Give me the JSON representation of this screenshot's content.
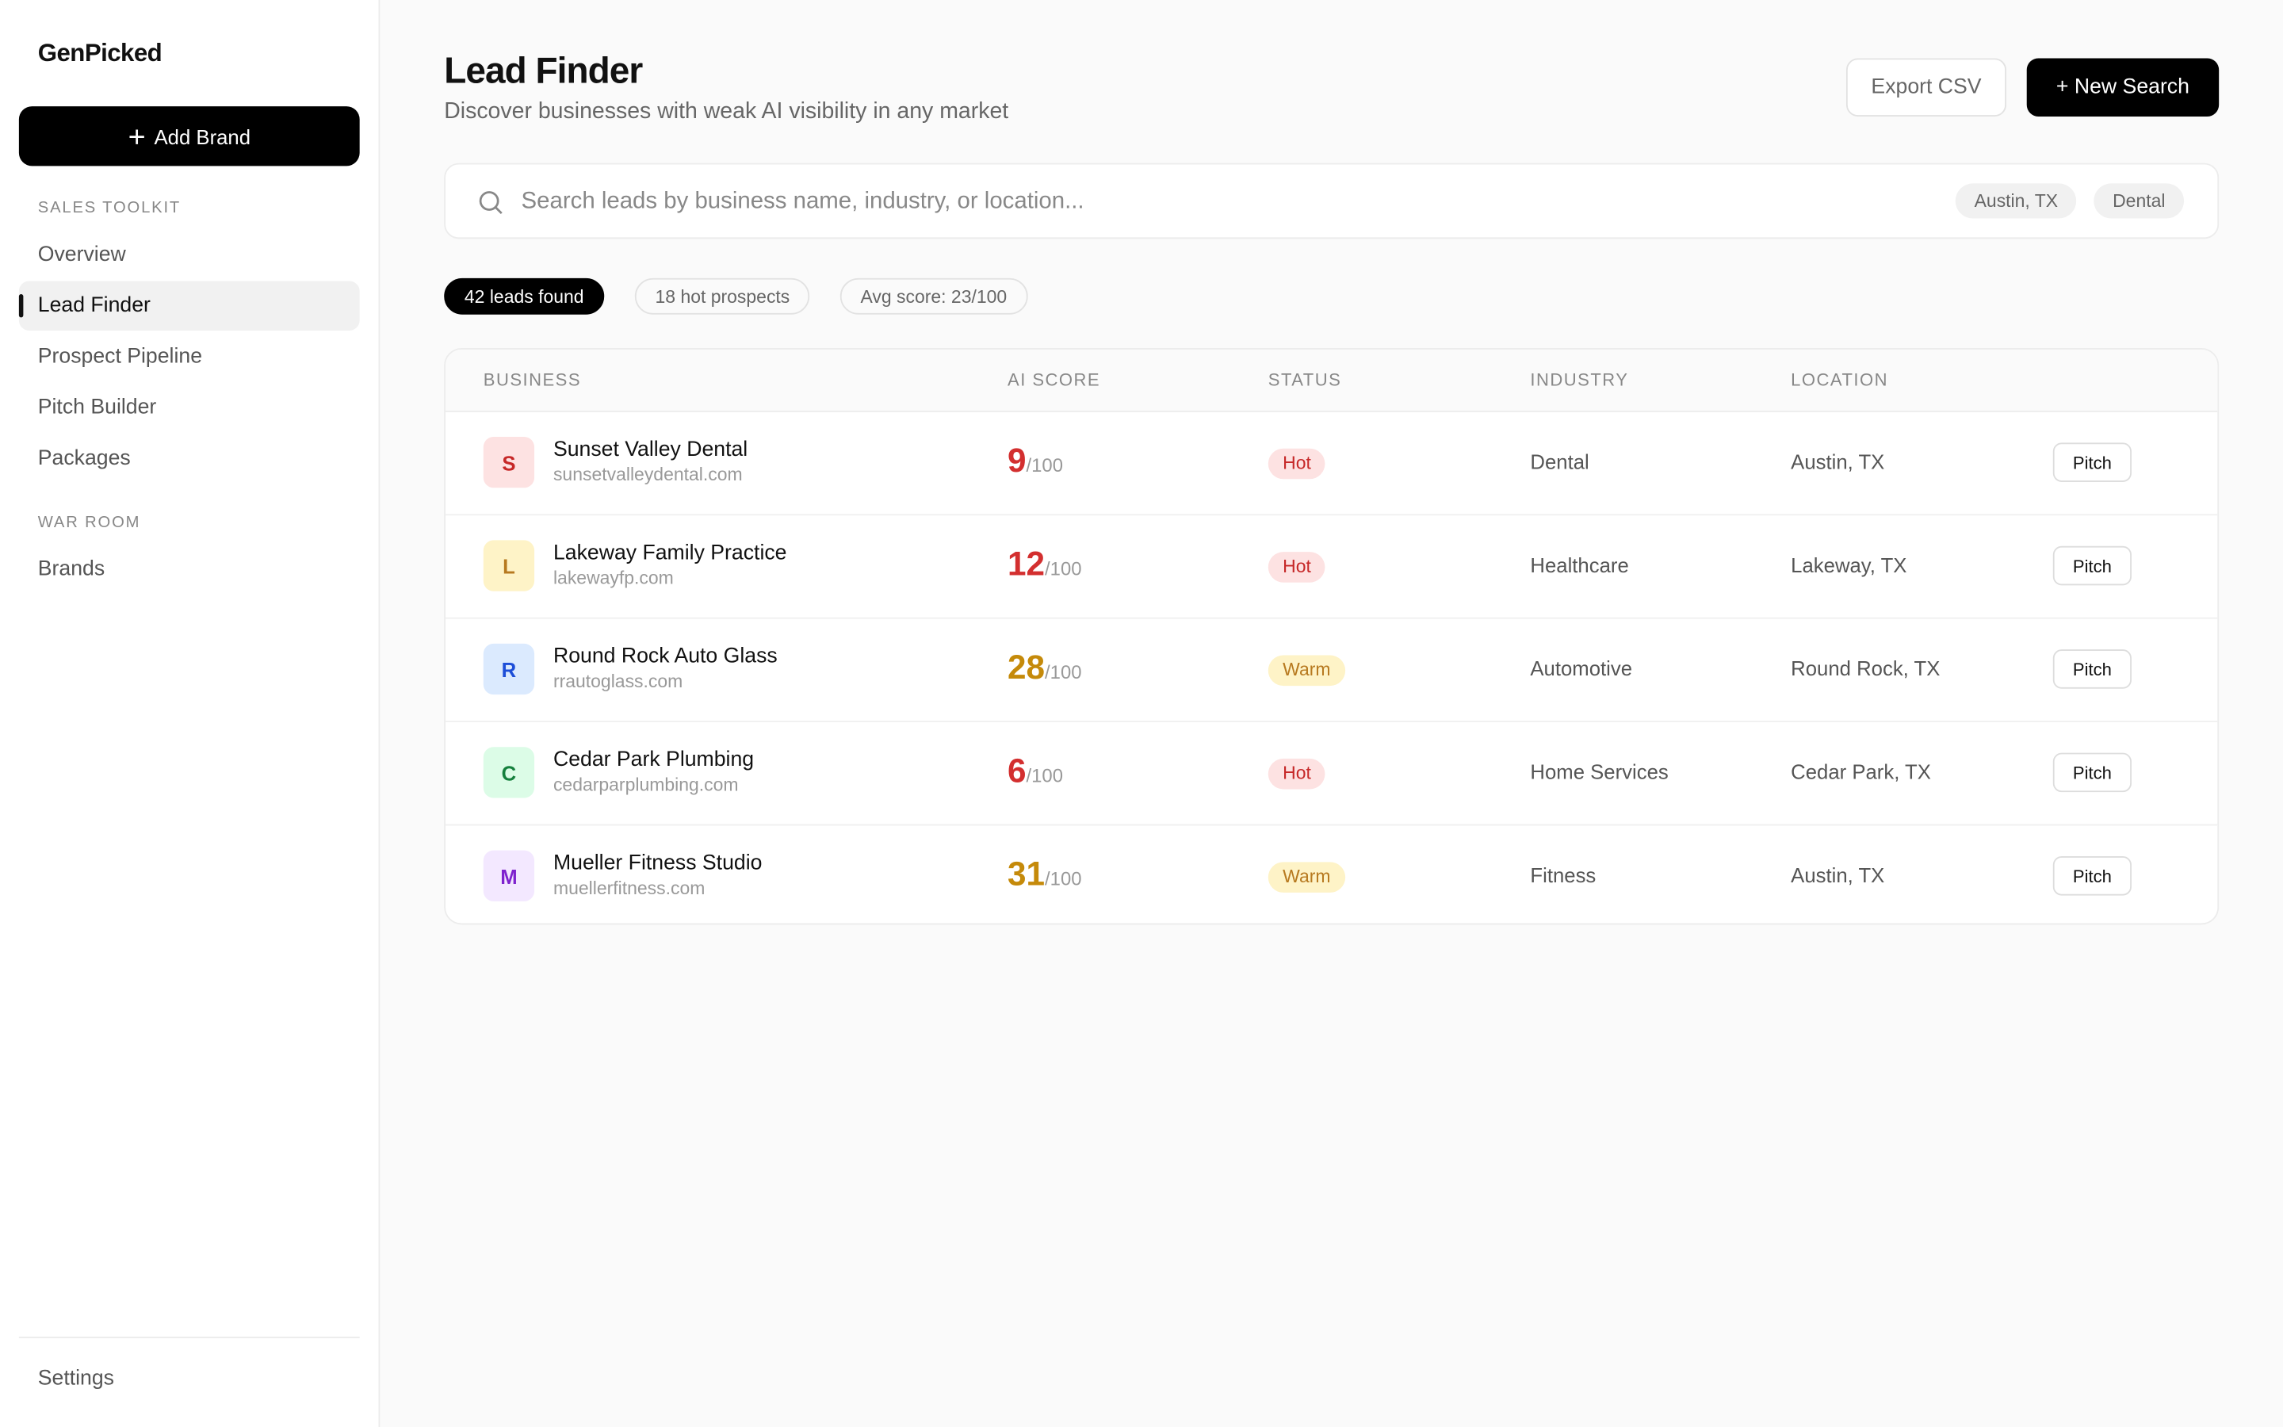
{
  "sidebar": {
    "brand": "GenPicked",
    "add_brand": "Add Brand",
    "sections": [
      {
        "title": "SALES TOOLKIT",
        "items": [
          "Overview",
          "Lead Finder",
          "Prospect Pipeline",
          "Pitch Builder",
          "Packages"
        ]
      },
      {
        "title": "WAR ROOM",
        "items": [
          "Brands"
        ]
      }
    ],
    "active": "Lead Finder",
    "settings": "Settings"
  },
  "header": {
    "title": "Lead Finder",
    "subtitle": "Discover businesses with weak AI visibility in any market",
    "export": "Export CSV",
    "new_search": "+ New Search"
  },
  "search": {
    "placeholder": "Search leads by business name, industry, or location...",
    "chips": [
      "Austin, TX",
      "Dental"
    ]
  },
  "stats": [
    "42 leads found",
    "18 hot prospects",
    "Avg score: 23/100"
  ],
  "table": {
    "columns": [
      "BUSINESS",
      "AI SCORE",
      "STATUS",
      "INDUSTRY",
      "LOCATION"
    ],
    "rows": [
      {
        "initial": "S",
        "name": "Sunset Valley Dental",
        "domain": "sunsetvalleydental.com",
        "score": 9,
        "score_suffix": "/100",
        "status": "Hot",
        "industry": "Dental",
        "location": "Austin, TX",
        "action": "Pitch"
      },
      {
        "initial": "L",
        "name": "Lakeway Family Practice",
        "domain": "lakewayfp.com",
        "score": 12,
        "score_suffix": "/100",
        "status": "Hot",
        "industry": "Healthcare",
        "location": "Lakeway, TX",
        "action": "Pitch"
      },
      {
        "initial": "R",
        "name": "Round Rock Auto Glass",
        "domain": "rrautoglass.com",
        "score": 28,
        "score_suffix": "/100",
        "status": "Warm",
        "industry": "Automotive",
        "location": "Round Rock, TX",
        "action": "Pitch"
      },
      {
        "initial": "C",
        "name": "Cedar Park Plumbing",
        "domain": "cedarparplumbing.com",
        "score": 6,
        "score_suffix": "/100",
        "status": "Hot",
        "industry": "Home Services",
        "location": "Cedar Park, TX",
        "action": "Pitch"
      },
      {
        "initial": "M",
        "name": "Mueller Fitness Studio",
        "domain": "muellerfitness.com",
        "score": 31,
        "score_suffix": "/100",
        "status": "Warm",
        "industry": "Fitness",
        "location": "Austin, TX",
        "action": "Pitch"
      }
    ]
  }
}
